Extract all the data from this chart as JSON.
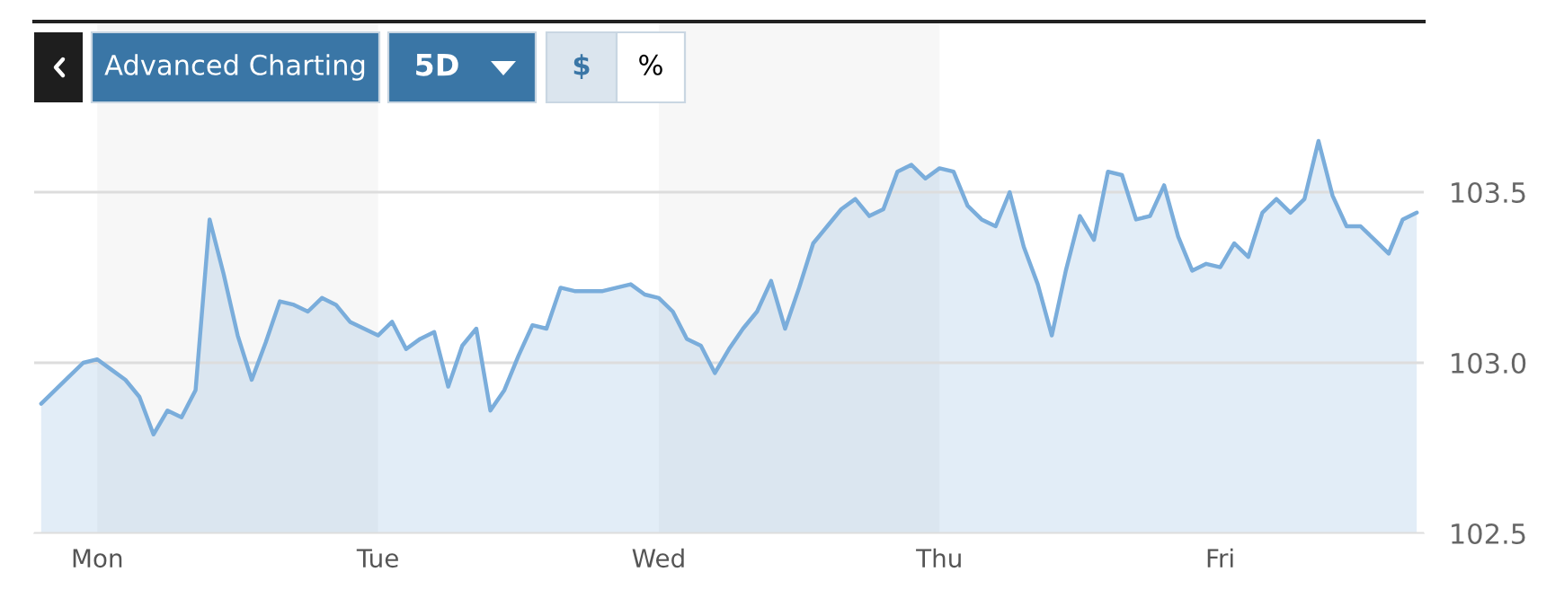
{
  "chart_data": {
    "type": "area",
    "categories": [
      null,
      null,
      null,
      null,
      "Mon",
      null,
      null,
      null,
      null,
      null,
      null,
      null,
      null,
      null,
      null,
      null,
      null,
      null,
      null,
      null,
      null,
      null,
      null,
      null,
      "Tue",
      null,
      null,
      null,
      null,
      null,
      null,
      null,
      null,
      null,
      null,
      null,
      null,
      null,
      null,
      null,
      null,
      null,
      null,
      null,
      "Wed",
      null,
      null,
      null,
      null,
      null,
      null,
      null,
      null,
      null,
      null,
      null,
      null,
      null,
      null,
      null,
      null,
      null,
      null,
      null,
      "Thu",
      null,
      null,
      null,
      null,
      null,
      null,
      null,
      null,
      null,
      null,
      null,
      null,
      null,
      null,
      null,
      null,
      null,
      null,
      null,
      "Fri",
      null,
      null,
      null,
      null,
      null,
      null,
      null,
      null,
      null,
      null,
      null,
      null,
      null,
      null
    ],
    "series": [
      {
        "color": "#7aaddb",
        "values": [
          102.88,
          102.92,
          102.96,
          103.0,
          103.01,
          102.98,
          102.95,
          102.9,
          102.79,
          102.86,
          102.84,
          102.92,
          103.42,
          103.26,
          103.08,
          102.95,
          103.06,
          103.18,
          103.17,
          103.15,
          103.19,
          103.17,
          103.12,
          103.1,
          103.08,
          103.12,
          103.04,
          103.07,
          103.09,
          102.93,
          103.05,
          103.1,
          102.86,
          102.92,
          103.02,
          103.11,
          103.1,
          103.22,
          103.21,
          103.21,
          103.21,
          103.22,
          103.23,
          103.2,
          103.19,
          103.15,
          103.07,
          103.05,
          102.97,
          103.04,
          103.1,
          103.15,
          103.24,
          103.1,
          103.22,
          103.35,
          103.4,
          103.45,
          103.48,
          103.43,
          103.45,
          103.56,
          103.58,
          103.54,
          103.57,
          103.56,
          103.46,
          103.42,
          103.4,
          103.5,
          103.34,
          103.23,
          103.08,
          103.27,
          103.43,
          103.36,
          103.56,
          103.55,
          103.42,
          103.43,
          103.52,
          103.37,
          103.27,
          103.29,
          103.28,
          103.35,
          103.31,
          103.44,
          103.48,
          103.44,
          103.48,
          103.65,
          103.49,
          103.4,
          103.4,
          103.36,
          103.32,
          103.42,
          103.44
        ]
      }
    ],
    "ylim": [
      102.5,
      104.0
    ],
    "yticks": [
      {
        "value": 102.5,
        "label": "102.5"
      },
      {
        "value": 103.0,
        "label": "103.0"
      },
      {
        "value": 103.5,
        "label": "103.5"
      }
    ],
    "bands": [
      {
        "axis": "x",
        "from": "Mon",
        "to": "Tue",
        "color": "#f7f7f7"
      },
      {
        "axis": "x",
        "from": "Wed",
        "to": "Thu",
        "color": "#f7f7f7"
      }
    ],
    "grid": "y",
    "legend": false,
    "annotations": [
      "Advanced Charting",
      "5D",
      "$",
      "%"
    ]
  }
}
